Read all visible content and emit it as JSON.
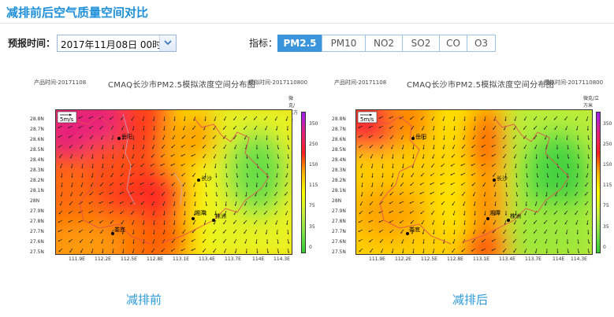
{
  "page": {
    "title": "减排前后空气质量空间对比"
  },
  "controls": {
    "forecast_label": "预报时间：",
    "forecast_value": "2017年11月08日 00时",
    "indicator_label": "指标：",
    "indicators": [
      "PM2.5",
      "PM10",
      "NO2",
      "SO2",
      "CO",
      "O3"
    ],
    "active_indicator": "PM2.5"
  },
  "maps": {
    "header_left": "产品时间-20171108",
    "header_title": "CMAQ长沙市PM2.5模拟浓度空间分布图",
    "header_right": "模拟时间-2017110800",
    "unit": "微克/立方米",
    "wind_scale": "5m/s",
    "lat_ticks": [
      "28.8N",
      "28.7N",
      "28.6N",
      "28.5N",
      "28.4N",
      "28.3N",
      "28.2N",
      "28.1N",
      "28N",
      "27.9N",
      "27.8N",
      "27.7N",
      "27.6N",
      "27.5N"
    ],
    "lon_ticks": [
      "111.9E",
      "112.2E",
      "112.5E",
      "112.8E",
      "113.1E",
      "113.4E",
      "113.7E",
      "114E",
      "114.3E"
    ],
    "colorbar_ticks": [
      "350",
      "250",
      "150",
      "115",
      "75",
      "35",
      "0"
    ],
    "cities": [
      "岳阳",
      "长沙",
      "湘潭",
      "株洲",
      "娄底"
    ],
    "before_caption": "减排前",
    "after_caption": "减排后"
  }
}
